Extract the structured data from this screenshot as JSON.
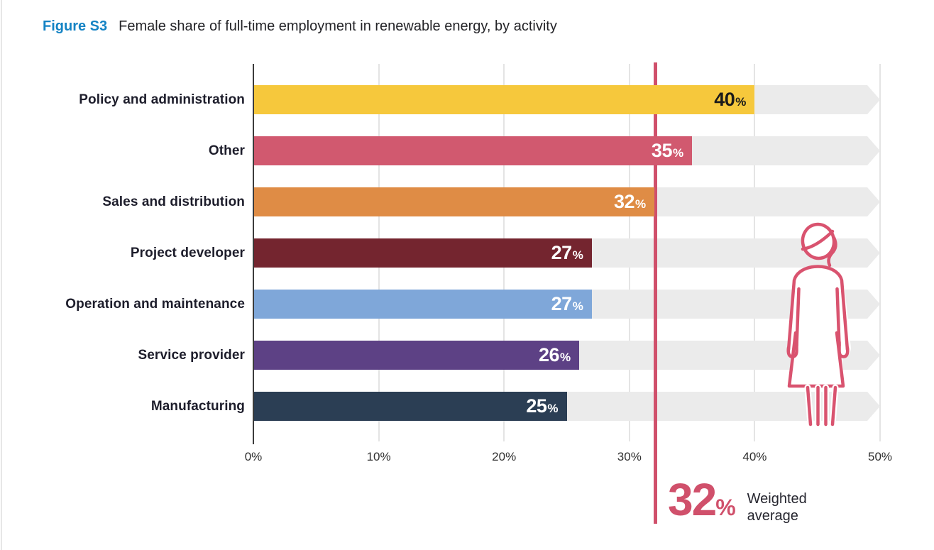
{
  "figure": {
    "label": "Figure S3",
    "title": "Female share of full-time employment in renewable energy, by activity",
    "label_color": "#1483C4"
  },
  "chart_data": {
    "type": "bar",
    "orientation": "horizontal",
    "title": "Female share of full-time employment in renewable energy, by activity",
    "categories": [
      "Policy and administration",
      "Other",
      "Sales and distribution",
      "Project developer",
      "Operation and maintenance",
      "Service provider",
      "Manufacturing"
    ],
    "values": [
      40,
      35,
      32,
      27,
      27,
      26,
      25
    ],
    "value_labels": [
      "40%",
      "35%",
      "32%",
      "27%",
      "27%",
      "26%",
      "25%"
    ],
    "unit": "%",
    "bar_colors": [
      "#F6C83C",
      "#D1596F",
      "#DF8C45",
      "#74252F",
      "#7FA7D9",
      "#5D4185",
      "#2B3E54"
    ],
    "value_label_colors": [
      "#1A1A1A",
      "#FFFFFF",
      "#FFFFFF",
      "#FFFFFF",
      "#FFFFFF",
      "#FFFFFF",
      "#FFFFFF"
    ],
    "x_ticks": [
      "0%",
      "10%",
      "20%",
      "30%",
      "40%",
      "50%"
    ],
    "xlim": [
      0,
      50
    ],
    "grid": true,
    "legend": false,
    "track_color": "#EBEBEB",
    "grid_color": "#E4E4E4",
    "axis_color": "#3C3C3C",
    "weighted_average": {
      "value": 32,
      "number_text": "32",
      "percent_sign": "%",
      "label_line1": "Weighted",
      "label_line2": "average",
      "line_color": "#D0506B",
      "text_color": "#D0506B"
    }
  },
  "icons": {
    "woman_figure": {
      "name": "woman-outline-icon",
      "color": "#D9536F"
    }
  }
}
